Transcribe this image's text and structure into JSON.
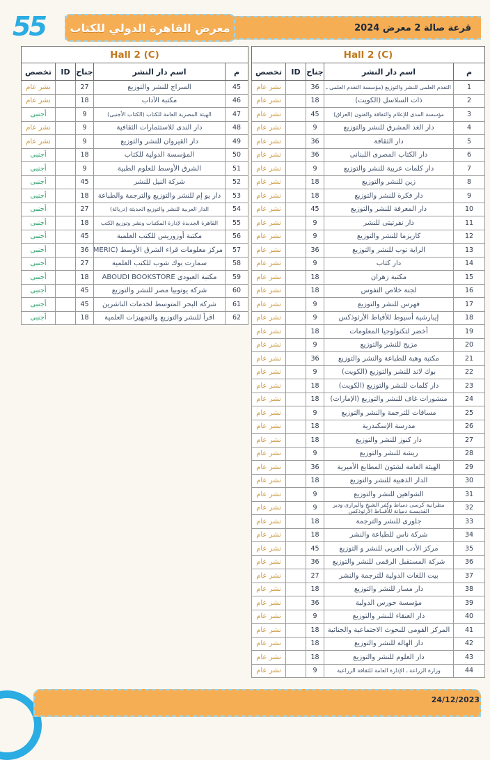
{
  "header": {
    "edition_number": "55",
    "fair_logo_text": "معرض القاهرة الدولي للكتاب",
    "lottery_title": "قرعة صالة 2 معرض 2024"
  },
  "footer": {
    "date": "24/12/2023"
  },
  "columns": {
    "num": "م",
    "name": "اسم دار النشر",
    "booth": "جناح",
    "id": "ID",
    "spec": "تخصص"
  },
  "spec_labels": {
    "general": "نشر عام",
    "foreign": "أجنبى"
  },
  "colors": {
    "accent-orange": "#F6AE55",
    "accent-blue": "#2BACE2",
    "hall-title": "#C0791E",
    "spec-general": "#CE9A42",
    "spec-foreign": "#35A470"
  },
  "tables": [
    {
      "title": "Hall 2 (C)",
      "rows": [
        {
          "n": 1,
          "name": "التقدم العلمى للنشر والتوزيع (مؤسسة التقدم العلمى ـ الكويت)",
          "booth": 36,
          "id": "",
          "spec": "general"
        },
        {
          "n": 2,
          "name": "ذات السلاسل (الكويت)",
          "booth": 18,
          "id": "",
          "spec": "general"
        },
        {
          "n": 3,
          "name": "مؤسسة المدى للإعلام والثقافة والفنون (العراق)",
          "booth": 45,
          "id": "",
          "spec": "general"
        },
        {
          "n": 4,
          "name": "دار الغد المشرق للنشر والتوزيع",
          "booth": 9,
          "id": "",
          "spec": "general"
        },
        {
          "n": 5,
          "name": "دار الثقافة",
          "booth": 36,
          "id": "",
          "spec": "general"
        },
        {
          "n": 6,
          "name": "دار الكتاب المصرى اللبنانى",
          "booth": 36,
          "id": "",
          "spec": "general"
        },
        {
          "n": 7,
          "name": "دار كلمات عربية للنشر والتوزيع",
          "booth": 9,
          "id": "",
          "spec": "general"
        },
        {
          "n": 8,
          "name": "زين للنشر والتوزيع",
          "booth": 18,
          "id": "",
          "spec": "general"
        },
        {
          "n": 9,
          "name": "دار فكرة للنشر والتوزيع",
          "booth": 18,
          "id": "",
          "spec": "general"
        },
        {
          "n": 10,
          "name": "دار المعرفة للنشر والتوزيع",
          "booth": 45,
          "id": "",
          "spec": "general"
        },
        {
          "n": 11,
          "name": "دار نفرتيتى للنشر",
          "booth": 9,
          "id": "",
          "spec": "general"
        },
        {
          "n": 12,
          "name": "كاريزما للنشر والتوزيع",
          "booth": 9,
          "id": "",
          "spec": "general"
        },
        {
          "n": 13,
          "name": "الراية توب للنشر والتوزيع",
          "booth": 36,
          "id": "",
          "spec": "general"
        },
        {
          "n": 14,
          "name": "دار كتاب",
          "booth": 9,
          "id": "",
          "spec": "general"
        },
        {
          "n": 15,
          "name": "مكتبة زهران",
          "booth": 18,
          "id": "",
          "spec": "general"
        },
        {
          "n": 16,
          "name": "لجنة خلاص النفوس",
          "booth": 18,
          "id": "",
          "spec": "general"
        },
        {
          "n": 17,
          "name": "فهرس للنشر والتوزيع",
          "booth": 9,
          "id": "",
          "spec": "general"
        },
        {
          "n": 18,
          "name": "إيبارشية أسيوط للأقباط الأرثوذكس",
          "booth": 9,
          "id": "",
          "spec": "general"
        },
        {
          "n": 19,
          "name": "أخضر لتكنولوجيا المعلومات",
          "booth": 18,
          "id": "",
          "spec": "general"
        },
        {
          "n": 20,
          "name": "مزيج للنشر والتوزيع",
          "booth": 9,
          "id": "",
          "spec": "general"
        },
        {
          "n": 21,
          "name": "مكتبة وهبة للطباعة والنشر والتوزيع",
          "booth": 36,
          "id": "",
          "spec": "general"
        },
        {
          "n": 22,
          "name": "بوك لاند للنشر والتوزيع (الكويت)",
          "booth": 9,
          "id": "",
          "spec": "general"
        },
        {
          "n": 23,
          "name": "دار كلمات للنشر والتوزيع (الكويت)",
          "booth": 18,
          "id": "",
          "spec": "general"
        },
        {
          "n": 24,
          "name": "منشورات غاف للنشر والتوزيع (الإمارات)",
          "booth": 18,
          "id": "",
          "spec": "general"
        },
        {
          "n": 25,
          "name": "مسافات للترجمة والنشر والتوزيع",
          "booth": 9,
          "id": "",
          "spec": "general"
        },
        {
          "n": 26,
          "name": "مدرسة الإسكندرية",
          "booth": 18,
          "id": "",
          "spec": "general"
        },
        {
          "n": 27,
          "name": "دار كنوز للنشر والتوزيع",
          "booth": 18,
          "id": "",
          "spec": "general"
        },
        {
          "n": 28,
          "name": "ريشة للنشر والتوزيع",
          "booth": 9,
          "id": "",
          "spec": "general"
        },
        {
          "n": 29,
          "name": "الهيئة العامة لشئون المطابع الأميرية",
          "booth": 36,
          "id": "",
          "spec": "general"
        },
        {
          "n": 30,
          "name": "الدار الذهبية للنشر والتوزيع",
          "booth": 18,
          "id": "",
          "spec": "general"
        },
        {
          "n": 31,
          "name": "الشواهين للنشر والتوزيع",
          "booth": 9,
          "id": "",
          "spec": "general"
        },
        {
          "n": 32,
          "name": "مطرانية كرسى دمياط وكفر الشيخ والبرارى ودير القديسـة دميانة للأقبـاط الأرثوذكس",
          "booth": 9,
          "id": "",
          "spec": "general"
        },
        {
          "n": 33,
          "name": "جلورى للنشر والترجمة",
          "booth": 18,
          "id": "",
          "spec": "general"
        },
        {
          "n": 34,
          "name": "شركة ناس للطباعة والنشر",
          "booth": 18,
          "id": "",
          "spec": "general"
        },
        {
          "n": 35,
          "name": "مركز الأدب العربى للنشر و التوزيع",
          "booth": 45,
          "id": "",
          "spec": "general"
        },
        {
          "n": 36,
          "name": "شركة المستقبل الرقمى للنشر والتوزيع",
          "booth": 36,
          "id": "",
          "spec": "general"
        },
        {
          "n": 37,
          "name": "بيت اللغات الدولية للترجمة والنشر",
          "booth": 27,
          "id": "",
          "spec": "general"
        },
        {
          "n": 38,
          "name": "دار مسار للنشر والتوزيع",
          "booth": 18,
          "id": "",
          "spec": "general"
        },
        {
          "n": 39,
          "name": "مؤسسة حورس الدولية",
          "booth": 36,
          "id": "",
          "spec": "general"
        },
        {
          "n": 40,
          "name": "دار العنقاء للنشر والتوزيع",
          "booth": 9,
          "id": "",
          "spec": "general"
        },
        {
          "n": 41,
          "name": "المركز القومى للبحوث الاجتماعية والجنائية",
          "booth": 18,
          "id": "",
          "spec": "general"
        },
        {
          "n": 42,
          "name": "دار الهالة للنشر والتوزيع",
          "booth": 18,
          "id": "",
          "spec": "general"
        },
        {
          "n": 43,
          "name": "دار العلوم للنشر والتوزيع",
          "booth": 18,
          "id": "",
          "spec": "general"
        },
        {
          "n": 44,
          "name": "وزارة الزراعة ـ الإدارة العامة للثقافة الزراعية",
          "booth": 9,
          "id": "",
          "spec": "general"
        }
      ]
    },
    {
      "title": "Hall 2 (C)",
      "rows": [
        {
          "n": 45,
          "name": "السراج للنشر والتوزيع",
          "booth": 27,
          "id": "",
          "spec": "general"
        },
        {
          "n": 46,
          "name": "مكتبة الآداب",
          "booth": 18,
          "id": "",
          "spec": "general"
        },
        {
          "n": 47,
          "name": "الهيئة المصرية العامة للكتاب (الكتاب الأجنبى)",
          "booth": 9,
          "id": "",
          "spec": "foreign"
        },
        {
          "n": 48,
          "name": "دار الندى للاستثمارات الثقافية",
          "booth": 9,
          "id": "",
          "spec": "general"
        },
        {
          "n": 49,
          "name": "دار القيروان للنشر والتوزيع",
          "booth": 9,
          "id": "",
          "spec": "general"
        },
        {
          "n": 50,
          "name": "المؤسسة الدولية للكتاب",
          "booth": 18,
          "id": "",
          "spec": "foreign"
        },
        {
          "n": 51,
          "name": "الشرق الأوسط للعلوم الطبية",
          "booth": 9,
          "id": "",
          "spec": "foreign"
        },
        {
          "n": 52,
          "name": "شركة النيل للنشر",
          "booth": 45,
          "id": "",
          "spec": "foreign"
        },
        {
          "n": 53,
          "name": "دار يو إم للنشر والتوزيع والترجمة والطباعة",
          "booth": 18,
          "id": "",
          "spec": "foreign"
        },
        {
          "n": 54,
          "name": "الدار العربية للنشر والتوزيع الحديثة (دريالة)",
          "booth": 27,
          "id": "",
          "spec": "foreign"
        },
        {
          "n": 55,
          "name": "القاهرة الجديدة لإدارة المكتبات ونشر وتوزيع الكتب",
          "booth": 18,
          "id": "",
          "spec": "foreign"
        },
        {
          "n": 56,
          "name": "مكتبة أوزوريس للكتب العلمية",
          "booth": 45,
          "id": "",
          "spec": "foreign"
        },
        {
          "n": 57,
          "name": "مركز معلومات قراء الشرق الأوسط (MERIC)",
          "booth": 36,
          "id": "",
          "spec": "foreign"
        },
        {
          "n": 58,
          "name": "سمارت بوك شوب للكتب العلمية",
          "booth": 27,
          "id": "",
          "spec": "foreign"
        },
        {
          "n": 59,
          "name": "مكتبة العبودى ABOUDI BOOKSTORE",
          "booth": 18,
          "id": "",
          "spec": "foreign"
        },
        {
          "n": 60,
          "name": "شركة يوتوبيا مصر للنشر والتوزيع",
          "booth": 45,
          "id": "",
          "spec": "foreign"
        },
        {
          "n": 61,
          "name": "شركة البحر المتوسط لخدمات الناشرين",
          "booth": 45,
          "id": "",
          "spec": "foreign"
        },
        {
          "n": 62,
          "name": "اقرأ للنشر والتوزيع والتجهيزات العلمية",
          "booth": 18,
          "id": "",
          "spec": "foreign"
        }
      ]
    }
  ]
}
